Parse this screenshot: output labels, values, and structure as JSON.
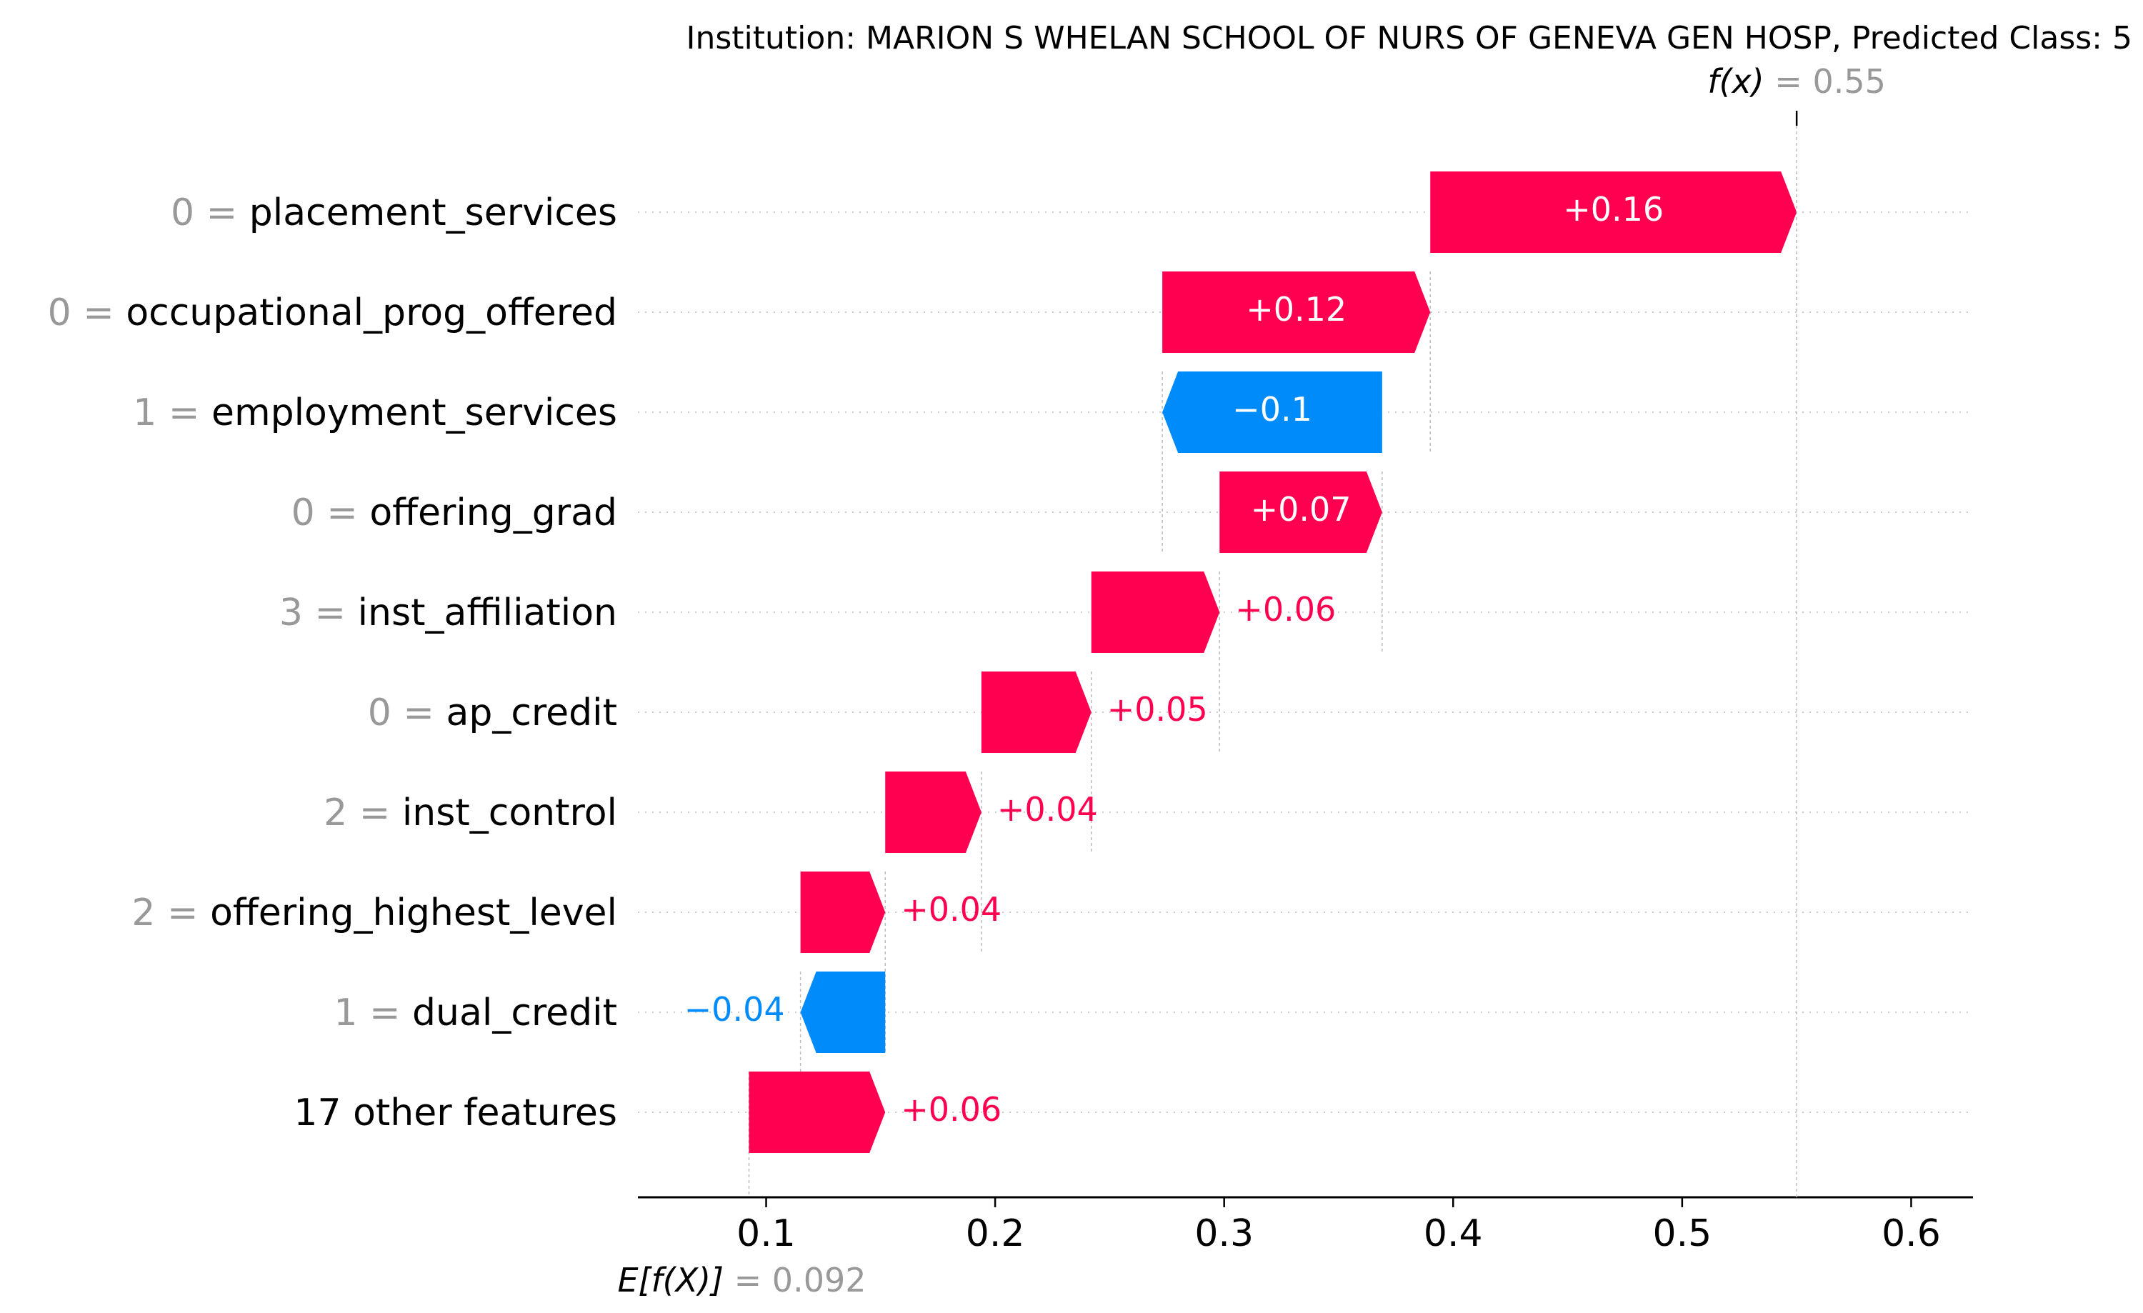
{
  "chart_data": {
    "type": "waterfall",
    "title": "Institution: MARION S WHELAN SCHOOL OF NURS OF GENEVA GEN HOSP, Predicted Class: 5",
    "fx_label": "f(x)",
    "fx_value": "0.55",
    "fx": 0.55,
    "base_label": "E[f(X)]",
    "base_value_text": "0.092",
    "base_value": 0.0925,
    "xlim": [
      0.044,
      0.627
    ],
    "xticks": [
      0.1,
      0.2,
      0.3,
      0.4,
      0.5,
      0.6
    ],
    "xtick_labels": [
      "0.1",
      "0.2",
      "0.3",
      "0.4",
      "0.5",
      "0.6"
    ],
    "grid": "horizontal-dotted",
    "colors": {
      "positive": "#ff0051",
      "negative": "#008bfb",
      "feature_value": "#999999",
      "text": "#000000"
    },
    "features": [
      {
        "value": "0",
        "name": "placement_services",
        "label": "+0.16",
        "start": 0.39,
        "end": 0.55
      },
      {
        "value": "0",
        "name": "occupational_prog_offered",
        "label": "+0.12",
        "start": 0.273,
        "end": 0.39
      },
      {
        "value": "1",
        "name": "employment_services",
        "label": "−0.1",
        "start": 0.369,
        "end": 0.273
      },
      {
        "value": "0",
        "name": "offering_grad",
        "label": "+0.07",
        "start": 0.298,
        "end": 0.369
      },
      {
        "value": "3",
        "name": "inst_affiliation",
        "label": "+0.06",
        "start": 0.242,
        "end": 0.298
      },
      {
        "value": "0",
        "name": "ap_credit",
        "label": "+0.05",
        "start": 0.194,
        "end": 0.242
      },
      {
        "value": "2",
        "name": "inst_control",
        "label": "+0.04",
        "start": 0.152,
        "end": 0.194
      },
      {
        "value": "2",
        "name": "offering_highest_level",
        "label": "+0.04",
        "start": 0.115,
        "end": 0.152
      },
      {
        "value": "1",
        "name": "dual_credit",
        "label": "−0.04",
        "start": 0.152,
        "end": 0.115
      },
      {
        "value": "",
        "name": "17 other features",
        "label": "+0.06",
        "start": 0.0925,
        "end": 0.152
      }
    ]
  }
}
